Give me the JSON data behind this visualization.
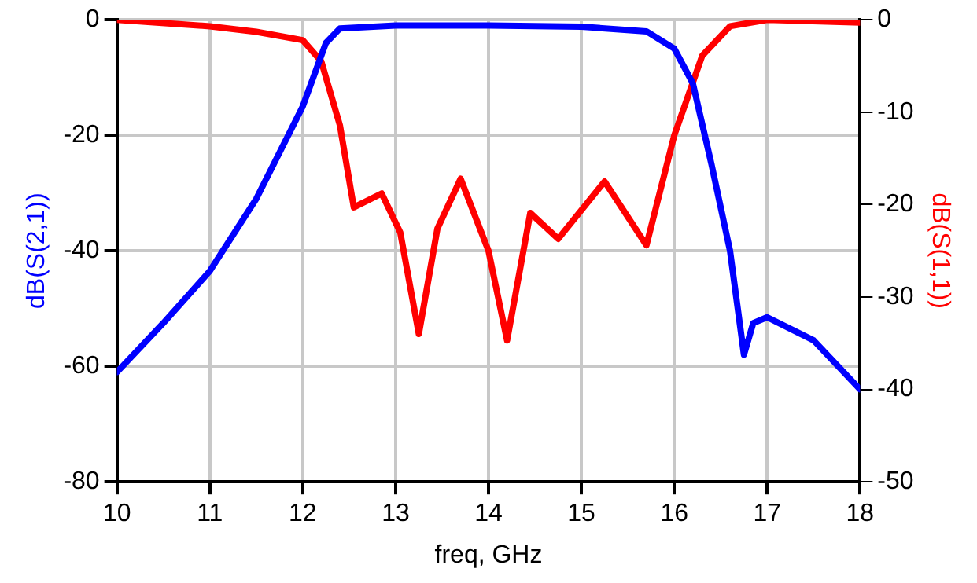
{
  "chart_data": {
    "type": "line",
    "xlabel": "freq, GHz",
    "ylabel": "dB(S(2,1))",
    "y2label": "dB(S(1,1))",
    "xlim": [
      10,
      18
    ],
    "xticks": [
      10,
      11,
      12,
      13,
      14,
      15,
      16,
      17,
      18
    ],
    "ylim": [
      -80,
      0
    ],
    "yticks": [
      -80,
      -60,
      -40,
      -20,
      0
    ],
    "y2lim": [
      -50,
      0
    ],
    "y2ticks": [
      -50,
      -40,
      -30,
      -20,
      -10,
      0
    ],
    "grid": true,
    "legend": false,
    "marker": "none",
    "line_style": "solid",
    "series": [
      {
        "color": "#0000ff",
        "x": [
          10,
          10.5,
          11,
          11.5,
          12,
          12.25,
          12.4,
          13,
          14,
          15,
          15.7,
          16,
          16.2,
          16.4,
          16.6,
          16.75,
          16.85,
          17,
          17.5,
          18
        ],
        "values": [
          -61,
          -52.5,
          -43.5,
          -31,
          -15,
          -4,
          -1.5,
          -1,
          -1,
          -1.2,
          -2,
          -5,
          -11,
          -25,
          -40,
          -58,
          -52.5,
          -51.5,
          -55.5,
          -64
        ]
      },
      {
        "color": "#ff0000",
        "axis": "y2",
        "x": [
          10,
          11,
          11.5,
          12,
          12.2,
          12.4,
          12.55,
          12.85,
          13.05,
          13.25,
          13.45,
          13.7,
          14,
          14.2,
          14.45,
          14.75,
          15.25,
          15.7,
          16,
          16.3,
          16.6,
          17,
          18
        ],
        "values": [
          0,
          -0.7,
          -1.3,
          -2.2,
          -4.5,
          -11.4,
          -20.3,
          -18.8,
          -23,
          -34,
          -22.6,
          -17.2,
          -25,
          -34.7,
          -20.9,
          -23.7,
          -17.5,
          -24.4,
          -12.5,
          -3.9,
          -0.7,
          0,
          -0.3
        ]
      }
    ]
  }
}
